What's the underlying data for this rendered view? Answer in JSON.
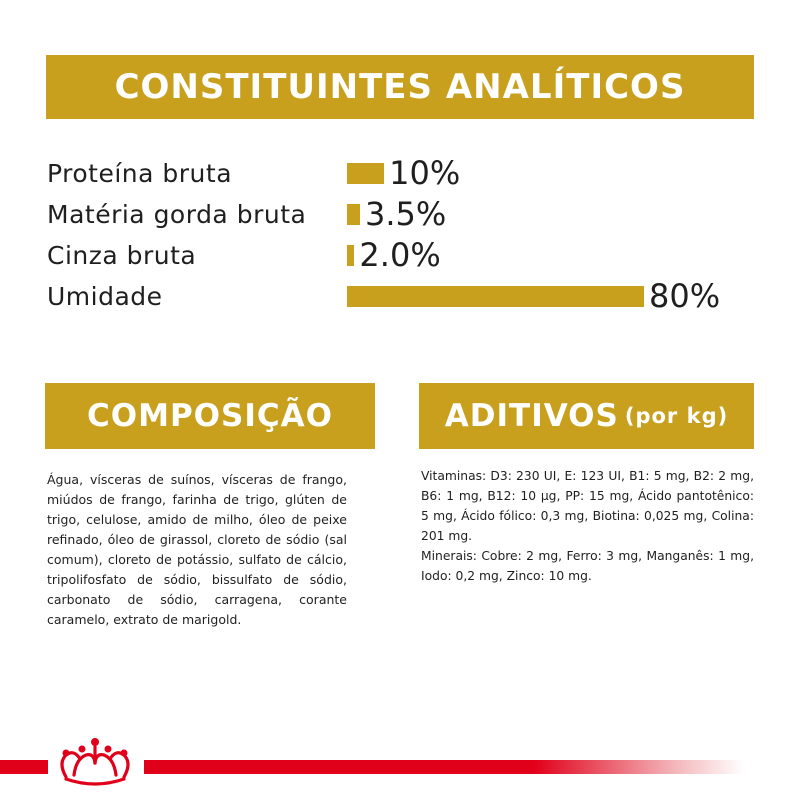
{
  "banners": {
    "analytical": "CONSTITUINTES ANALÍTICOS",
    "composition": "COMPOSIÇÃO",
    "additives": "ADITIVOS",
    "additives_unit": "(por kg)"
  },
  "chart_data": {
    "type": "bar",
    "orientation": "horizontal",
    "title": "CONSTITUINTES ANALÍTICOS",
    "categories": [
      "Proteína bruta",
      "Matéria gorda bruta",
      "Cinza bruta",
      "Umidade"
    ],
    "values": [
      10,
      3.5,
      2.0,
      80
    ],
    "value_labels": [
      "10%",
      "3.5%",
      "2.0%",
      "80%"
    ],
    "unit": "%",
    "xlim": [
      0,
      80
    ],
    "bar_color": "#c8a01e",
    "grid": false,
    "legend": "none"
  },
  "composition_text": "Água, vísceras de suínos, vísceras de frango, miúdos de frango, farinha de trigo, glúten de trigo, celulose, amido de milho, óleo de peixe refinado, óleo de girassol, cloreto de sódio (sal comum), cloreto de potássio, sulfato de cálcio, tripolifosfato de sódio, bissulfato de sódio, carbonato de sódio, carragena, corante caramelo, extrato de marigold.",
  "additives": {
    "vitamins": "Vitaminas: D3: 230 UI, E: 123 UI, B1: 5 mg, B2: 2 mg, B6: 1 mg, B12: 10 µg, PP: 15 mg, Ácido pantotênico: 5 mg, Ácido fólico: 0,3 mg, Biotina: 0,025 mg, Colina: 201 mg.",
    "minerals": "Minerais: Cobre: 2 mg, Ferro: 3 mg, Manganês: 1 mg, Iodo: 0,2 mg, Zinco: 10 mg."
  },
  "colors": {
    "accent": "#c8a01e",
    "brand_red": "#e1001a"
  },
  "brand": {
    "logo_icon": "crown-icon"
  }
}
